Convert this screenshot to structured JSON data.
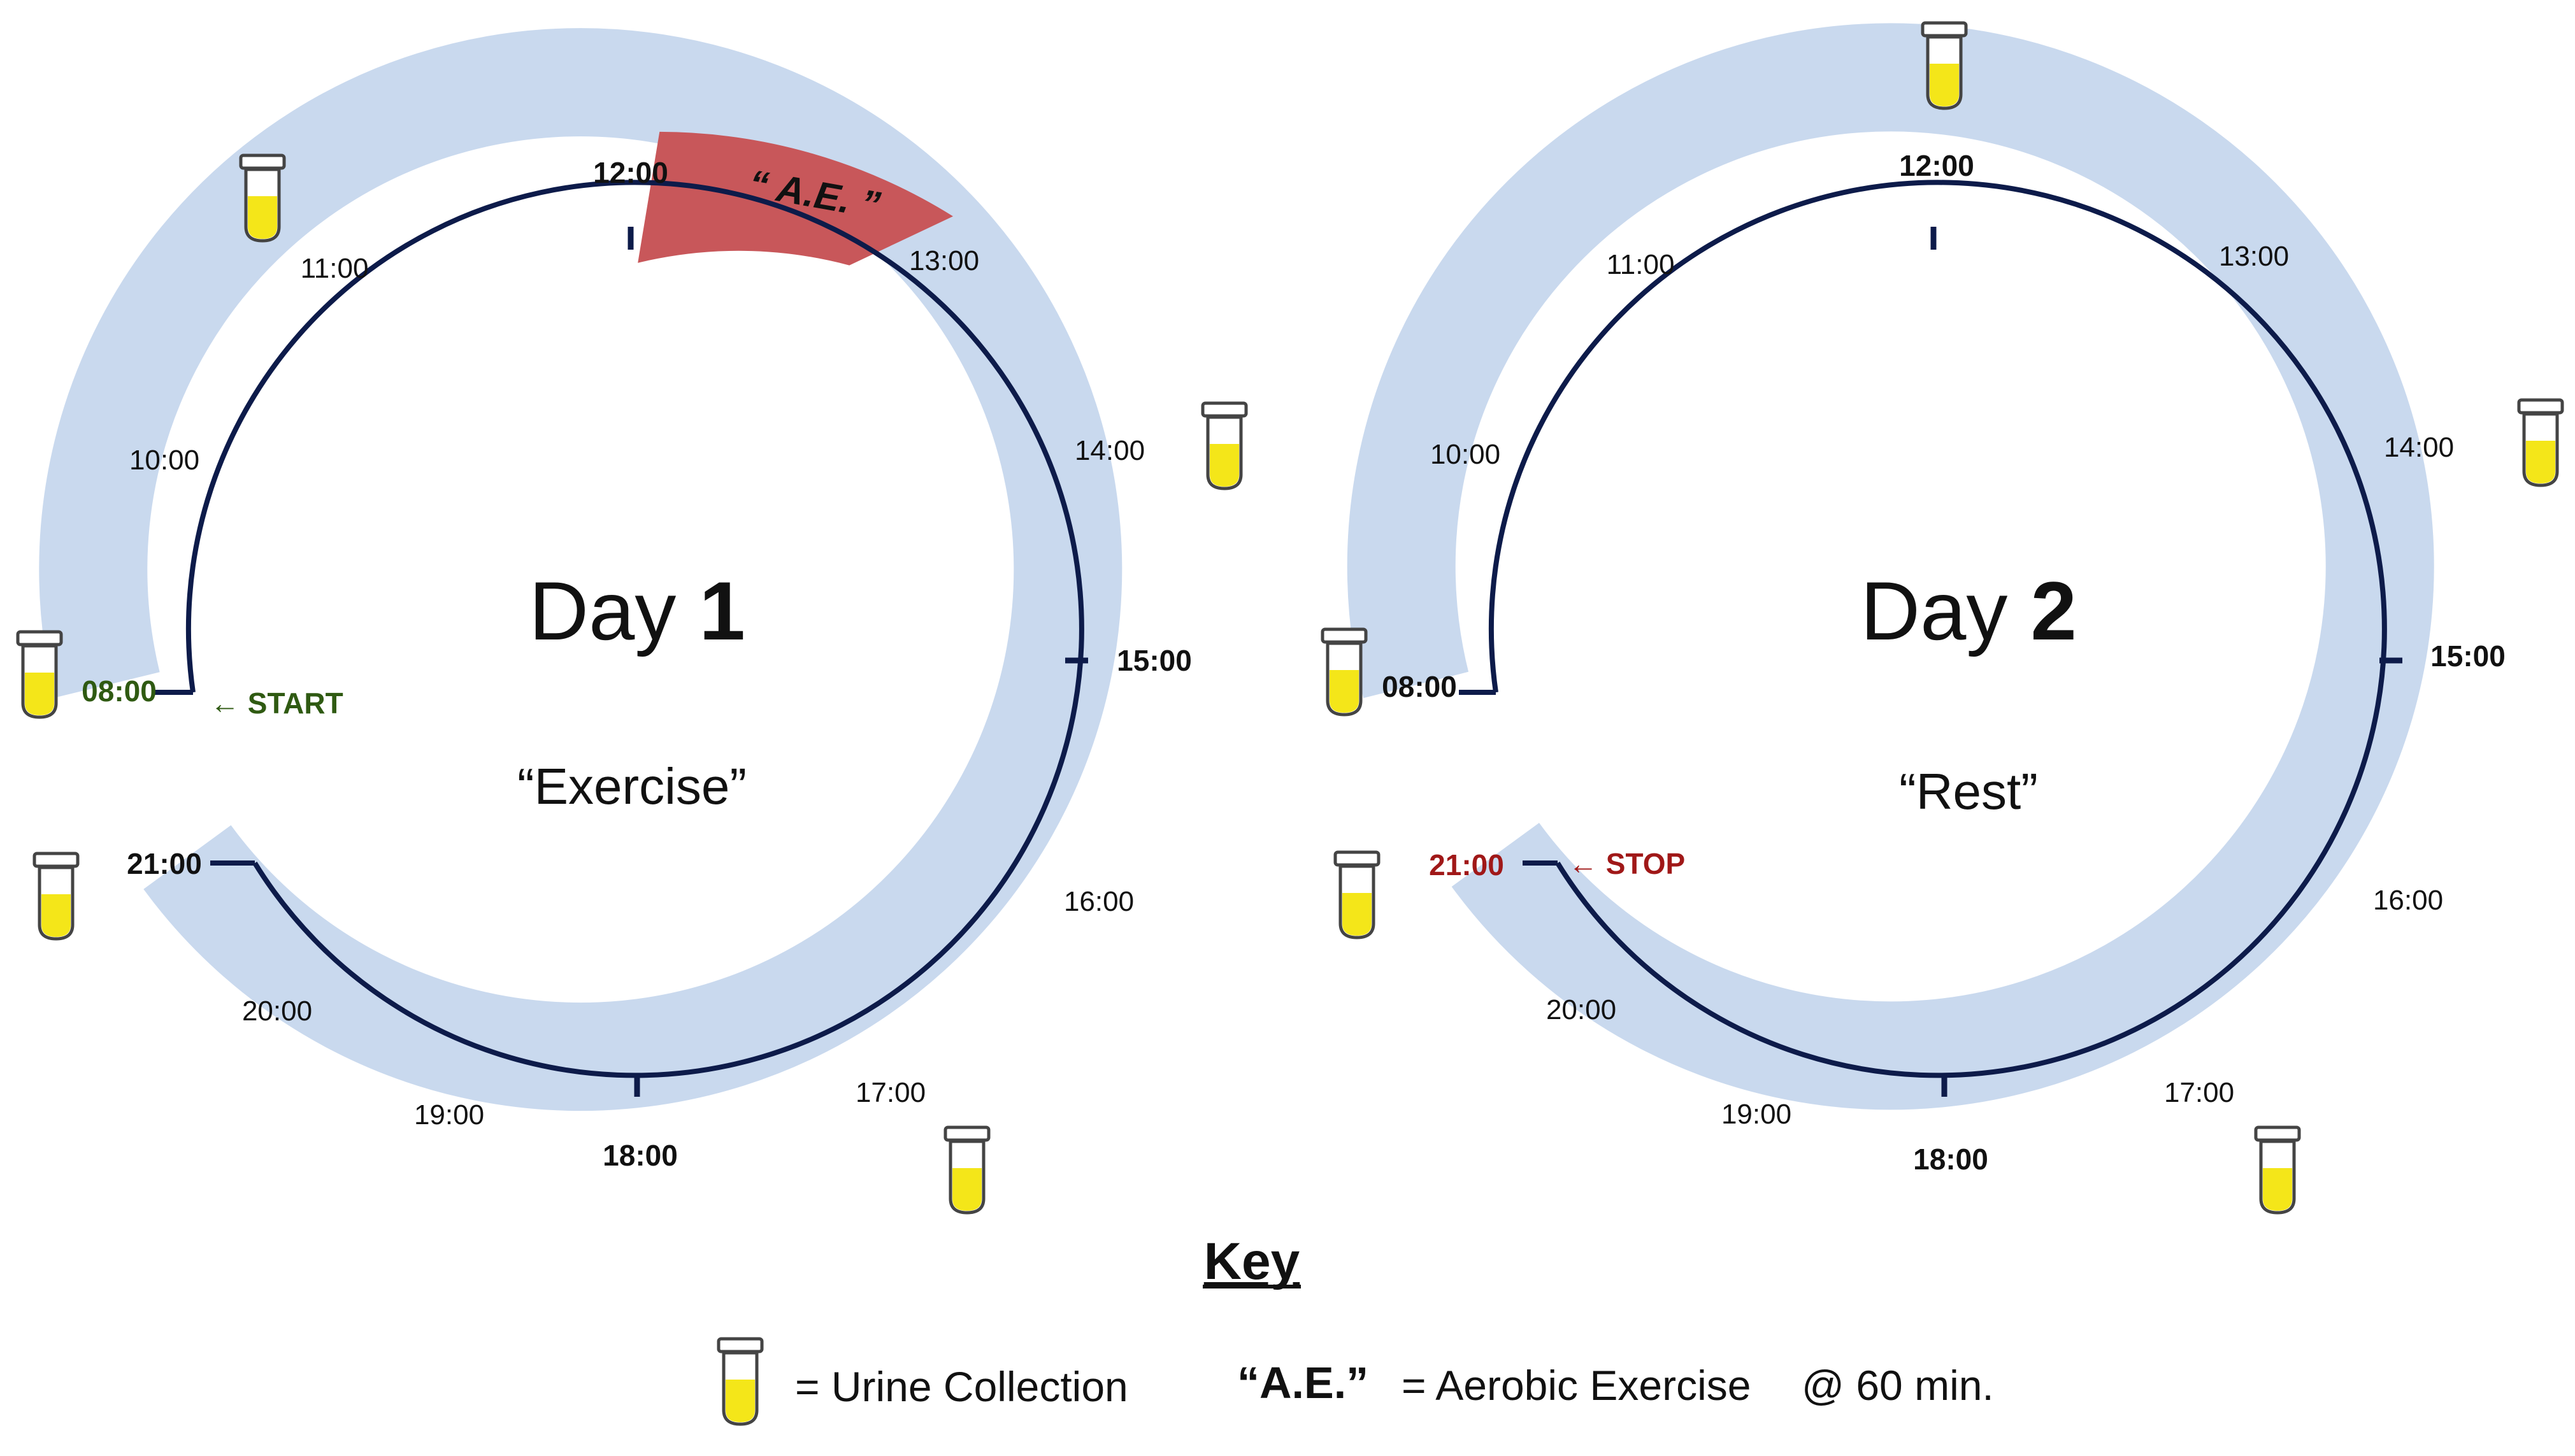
{
  "colors": {
    "ring": "#c9d9ee",
    "track": "#0d1b4a",
    "exercise_segment": "#c8575a",
    "start_text": "#2f5a12",
    "stop_text": "#a01818",
    "urine_liquid": "#f4e619",
    "urine_cap": "#ffffff"
  },
  "day1": {
    "title_prefix": "Day ",
    "title_number": "1",
    "subtitle": "“Exercise”",
    "hours": {
      "h08": "08:00",
      "h10": "10:00",
      "h11": "11:00",
      "h12": "12:00",
      "h13": "13:00",
      "h14": "14:00",
      "h15": "15:00",
      "h16": "16:00",
      "h17": "17:00",
      "h18": "18:00",
      "h19": "19:00",
      "h20": "20:00",
      "h21": "21:00"
    },
    "start_label": "← START",
    "ae_label": "“ A.E. ”"
  },
  "day2": {
    "title_prefix": "Day ",
    "title_number": "2",
    "subtitle": "“Rest”",
    "hours": {
      "h08": "08:00",
      "h10": "10:00",
      "h11": "11:00",
      "h12": "12:00",
      "h13": "13:00",
      "h14": "14:00",
      "h15": "15:00",
      "h16": "16:00",
      "h17": "17:00",
      "h18": "18:00",
      "h19": "19:00",
      "h20": "20:00",
      "h21": "21:00"
    },
    "stop_label": "← STOP"
  },
  "key": {
    "title": "Key",
    "urine_label": "= Urine Collection",
    "ae_abbrev": "“A.E.”",
    "ae_definition": "= Aerobic Exercise",
    "ae_duration": "@ 60 min."
  },
  "icons": {
    "urine_cup": "urine-cup-icon",
    "arrow": "left-arrow-icon"
  }
}
